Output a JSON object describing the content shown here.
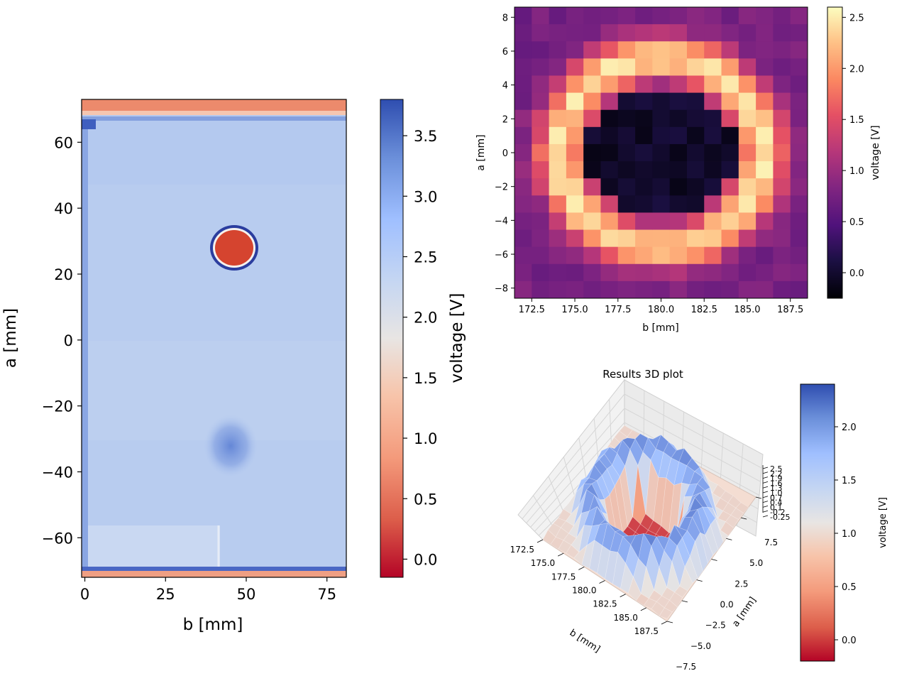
{
  "chart_data": [
    {
      "type": "heatmap",
      "id": "full_scan",
      "title": "",
      "xlabel": "b [mm]",
      "ylabel": "a [mm]",
      "xlim": [
        -1,
        81
      ],
      "ylim": [
        -72,
        73
      ],
      "xticks": [
        0,
        25,
        50,
        75
      ],
      "xtick_labels": [
        "0",
        "25",
        "50",
        "75"
      ],
      "yticks": [
        60,
        40,
        20,
        0,
        -20,
        -40,
        -60
      ],
      "ytick_labels": [
        "60",
        "40",
        "20",
        "0",
        "−20",
        "−40",
        "−60"
      ],
      "colormap": "coolwarm_r",
      "background_value": 2.5,
      "colorbar": {
        "label": "voltage [V]",
        "range": [
          -0.15,
          3.8
        ],
        "ticks": [
          3.5,
          3.0,
          2.5,
          2.0,
          1.5,
          1.0,
          0.5,
          0.0
        ],
        "tick_labels": [
          "3.5",
          "3.0",
          "2.5",
          "2.0",
          "1.5",
          "1.0",
          "0.5",
          "0.0"
        ]
      },
      "features": [
        {
          "name": "defect",
          "b": 46,
          "a": 28,
          "rb": 6.5,
          "ra": 6.5,
          "value": 0.2
        },
        {
          "name": "ring",
          "b": 46,
          "a": 28,
          "rb": 7.5,
          "ra": 7.5,
          "value": 3.8
        },
        {
          "name": "weak_spot",
          "b": 46,
          "a": -33,
          "rb": 8,
          "ra": 9,
          "value": 3.1
        },
        {
          "name": "top_edge",
          "a": 70,
          "value": 0.6
        },
        {
          "name": "bottom_edge",
          "a": -71,
          "value": 0.8
        }
      ]
    },
    {
      "type": "heatmap",
      "id": "zoom_scan",
      "title": "",
      "xlabel": "b [mm]",
      "ylabel": "a [mm]",
      "xlim": [
        171.5,
        188.5
      ],
      "ylim": [
        -8.6,
        8.6
      ],
      "xticks": [
        172.5,
        175.0,
        177.5,
        180.0,
        182.5,
        185.0,
        187.5
      ],
      "xtick_labels": [
        "172.5",
        "175.0",
        "177.5",
        "180.0",
        "182.5",
        "185.0",
        "187.5"
      ],
      "yticks": [
        8,
        6,
        4,
        2,
        0,
        -2,
        -4,
        -6,
        -8
      ],
      "ytick_labels": [
        "8",
        "6",
        "4",
        "2",
        "0",
        "−2",
        "−4",
        "−6",
        "−8"
      ],
      "colormap": "magma",
      "grid_size": [
        17,
        17
      ],
      "center_b": 180.0,
      "center_a": 0.0,
      "ring_radius": 5.6,
      "colorbar": {
        "label": "voltage [V]",
        "range": [
          -0.25,
          2.6
        ],
        "ticks": [
          2.5,
          2.0,
          1.5,
          1.0,
          0.5,
          0.0
        ],
        "tick_labels": [
          "2.5",
          "2.0",
          "1.5",
          "1.0",
          "0.5",
          "0.0"
        ]
      }
    },
    {
      "type": "surface3d",
      "id": "results_3d",
      "title": "Results 3D plot",
      "xlabel": "b [mm]",
      "ylabel": "a [mm]",
      "xtick_labels": [
        "172.5",
        "175.0",
        "177.5",
        "180.0",
        "182.5",
        "185.0",
        "187.5"
      ],
      "ytick_labels": [
        "7.5",
        "5.0",
        "2.5",
        "0.0",
        "−2.5",
        "−5.0",
        "−7.5"
      ],
      "ztick_labels": [
        "2.5",
        "2.2",
        "1.9",
        "1.6",
        "1.3",
        "1.0",
        "0.7",
        "0.4",
        "0.1",
        "-0.2",
        "-0.25"
      ],
      "colormap": "coolwarm_r",
      "colorbar": {
        "label": "voltage [V]",
        "range": [
          -0.2,
          2.4
        ],
        "ticks": [
          2.0,
          1.5,
          1.0,
          0.5,
          0.0
        ],
        "tick_labels": [
          "2.0",
          "1.5",
          "1.0",
          "0.5",
          "0.0"
        ]
      }
    }
  ]
}
